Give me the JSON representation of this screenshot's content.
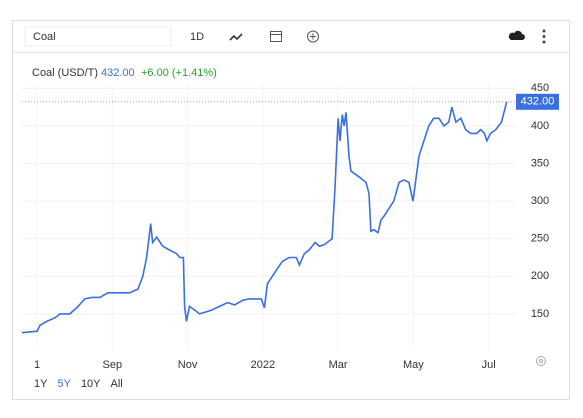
{
  "ui": {
    "search": "Coal",
    "interval": "1D",
    "ranges": [
      "1Y",
      "5Y",
      "10Y",
      "All"
    ],
    "selected_range": "5Y"
  },
  "chart_data": {
    "type": "line",
    "title": "Coal (USD/T)",
    "last_label": "432.00",
    "change_label": "+6.00 (+1.41%)",
    "color": "#3a6fe0",
    "grid": true,
    "x": [
      -0.4,
      0,
      0.08,
      0.26,
      0.48,
      0.61,
      0.87,
      1.09,
      1.27,
      1.46,
      1.67,
      1.88,
      2.46,
      2.68,
      2.81,
      2.91,
      3.02,
      3.07,
      3.18,
      3.34,
      3.52,
      3.71,
      3.79,
      3.89,
      3.92,
      3.97,
      4.05,
      4.19,
      4.32,
      4.45,
      4.64,
      4.85,
      5.06,
      5.25,
      5.46,
      5.64,
      5.96,
      6.04,
      6.12,
      6.25,
      6.38,
      6.52,
      6.7,
      6.89,
      6.97,
      7.1,
      7.23,
      7.39,
      7.5,
      7.63,
      7.84,
      7.92,
      8.0,
      8.05,
      8.11,
      8.16,
      8.21,
      8.29,
      8.34,
      8.48,
      8.61,
      8.74,
      8.82,
      8.87,
      8.95,
      9.06,
      9.14,
      9.22,
      9.35,
      9.48,
      9.62,
      9.75,
      9.88,
      9.99,
      10.07,
      10.15,
      10.28,
      10.41,
      10.54,
      10.68,
      10.81,
      10.94,
      11.02,
      11.13,
      11.26,
      11.39,
      11.52,
      11.68,
      11.79,
      11.89,
      11.95,
      12.05,
      12.19,
      12.34,
      12.48
    ],
    "values": [
      125,
      127,
      135,
      140,
      145,
      150,
      150,
      160,
      170,
      172,
      172,
      178,
      178,
      183,
      200,
      225,
      270,
      245,
      252,
      240,
      235,
      230,
      225,
      225,
      160,
      140,
      160,
      155,
      150,
      152,
      155,
      160,
      165,
      162,
      168,
      170,
      170,
      158,
      190,
      200,
      210,
      220,
      225,
      225,
      215,
      230,
      235,
      245,
      240,
      242,
      250,
      320,
      410,
      380,
      415,
      400,
      418,
      360,
      340,
      335,
      330,
      325,
      310,
      260,
      262,
      258,
      275,
      280,
      290,
      300,
      325,
      328,
      325,
      300,
      330,
      360,
      380,
      400,
      410,
      410,
      400,
      405,
      425,
      405,
      410,
      395,
      390,
      390,
      395,
      390,
      380,
      390,
      395,
      405,
      432
    ],
    "xlim": [
      -0.4,
      12.7
    ],
    "xticks": [
      {
        "value": 0,
        "label": "1"
      },
      {
        "value": 2,
        "label": "Sep"
      },
      {
        "value": 4,
        "label": "Nov"
      },
      {
        "value": 6,
        "label": "2022"
      },
      {
        "value": 8,
        "label": "Mar"
      },
      {
        "value": 10,
        "label": "May"
      },
      {
        "value": 12,
        "label": "Jul"
      }
    ],
    "ylim": [
      102,
      457
    ],
    "yticks": [
      150,
      200,
      250,
      300,
      350,
      400,
      450
    ]
  }
}
